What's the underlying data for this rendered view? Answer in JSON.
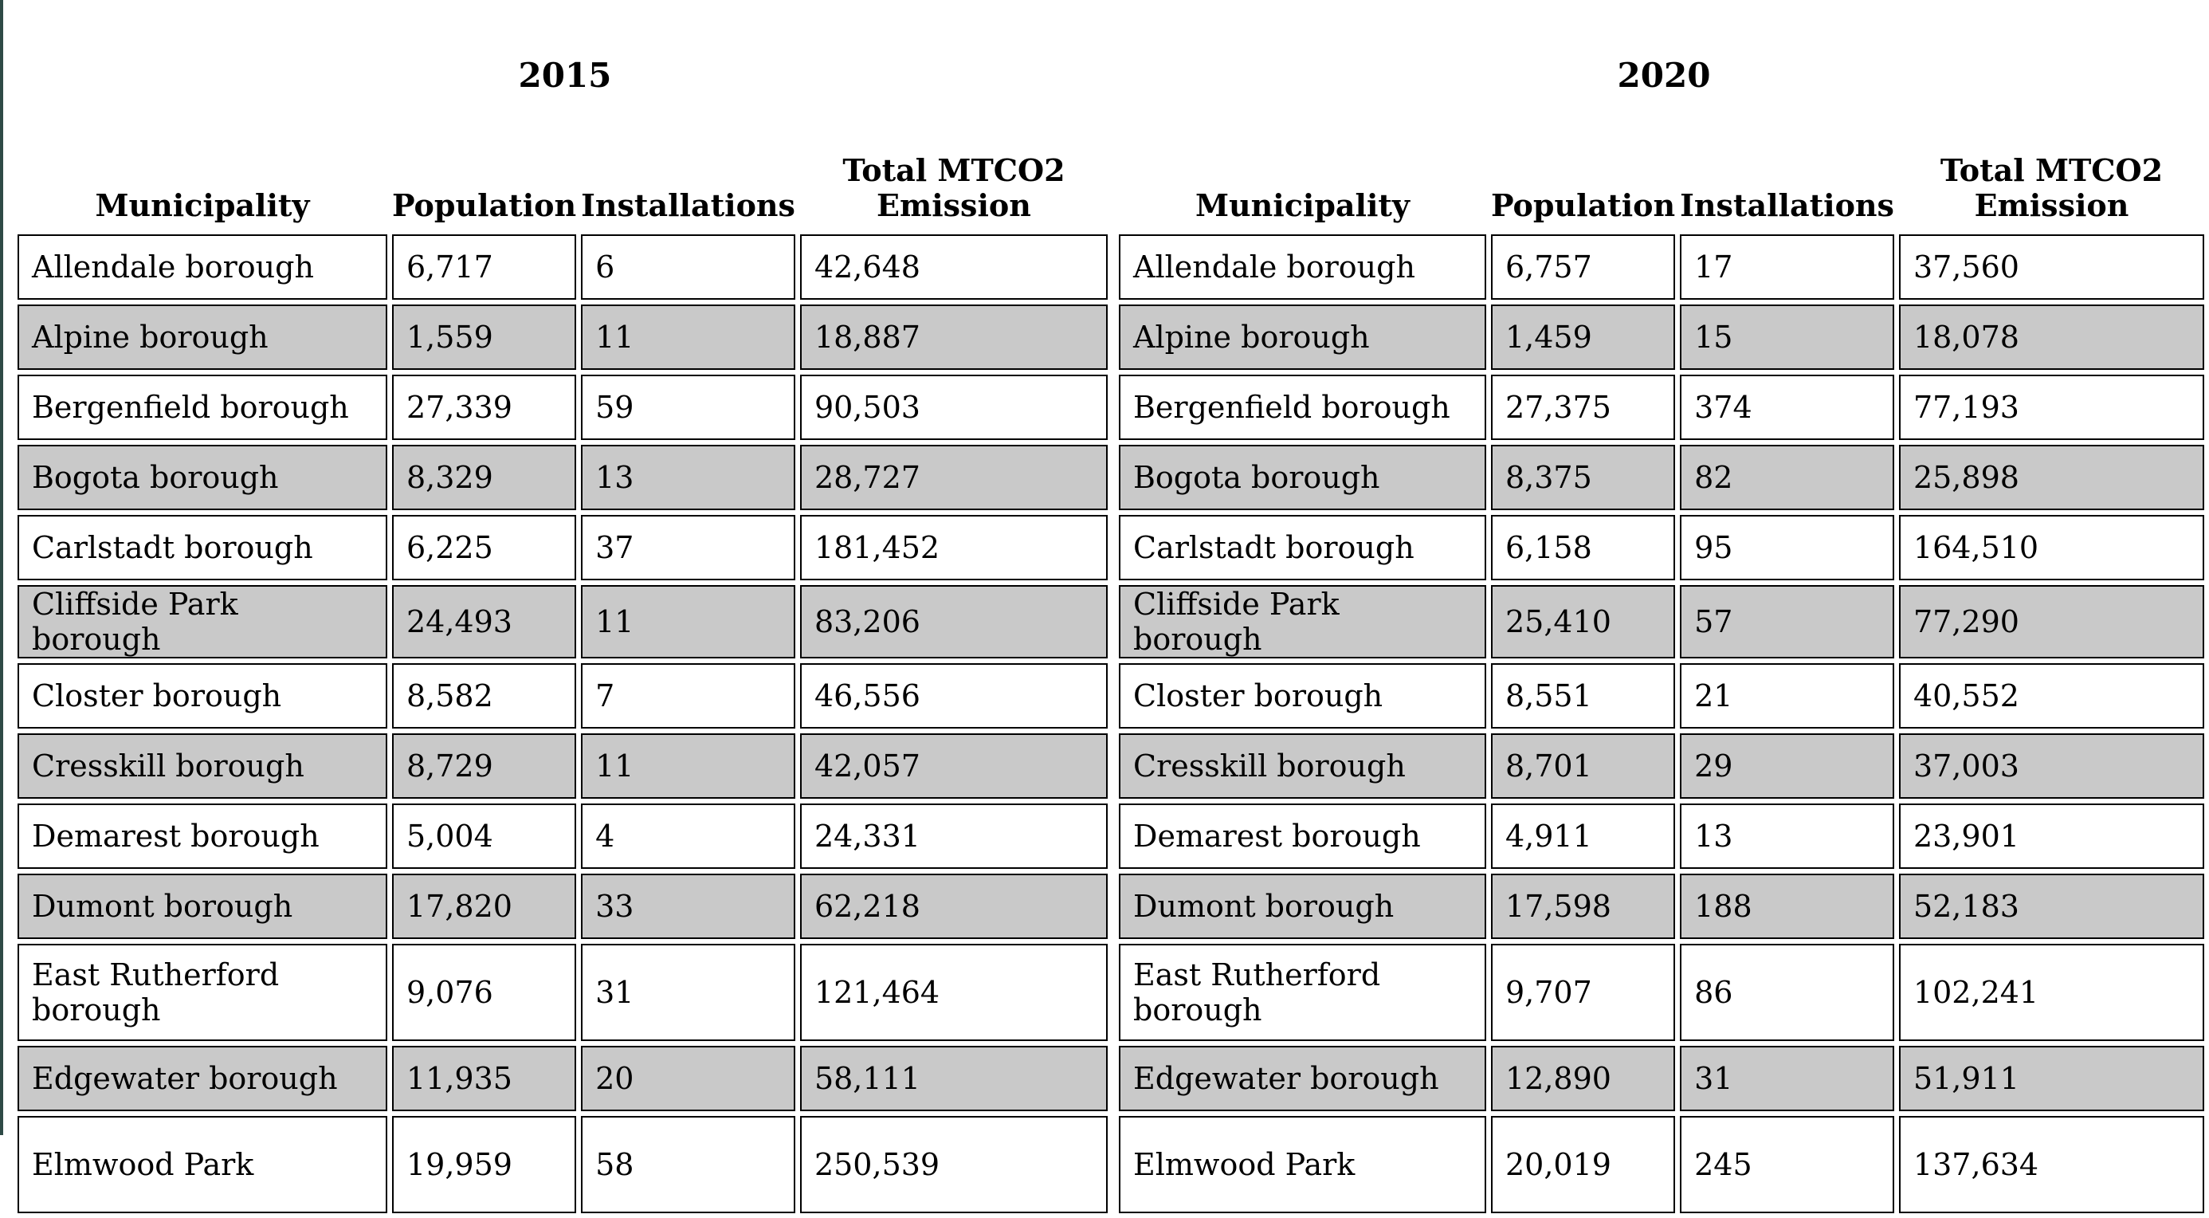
{
  "tables": [
    {
      "year": "2015",
      "headers": [
        "Municipality",
        "Population",
        "Installations",
        "Total MTCO2 Emission"
      ],
      "rows": [
        [
          "Allendale borough",
          "6,717",
          "6",
          "42,648"
        ],
        [
          "Alpine borough",
          "1,559",
          "11",
          "18,887"
        ],
        [
          "Bergenfield borough",
          "27,339",
          "59",
          "90,503"
        ],
        [
          "Bogota borough",
          "8,329",
          "13",
          "28,727"
        ],
        [
          "Carlstadt borough",
          "6,225",
          "37",
          "181,452"
        ],
        [
          "Cliffside Park borough",
          "24,493",
          "11",
          "83,206"
        ],
        [
          "Closter borough",
          "8,582",
          "7",
          "46,556"
        ],
        [
          "Cresskill borough",
          "8,729",
          "11",
          "42,057"
        ],
        [
          "Demarest borough",
          "5,004",
          "4",
          "24,331"
        ],
        [
          "Dumont borough",
          "17,820",
          "33",
          "62,218"
        ],
        [
          "East Rutherford borough",
          "9,076",
          "31",
          "121,464"
        ],
        [
          "Edgewater borough",
          "11,935",
          "20",
          "58,111"
        ],
        [
          "Elmwood Park",
          "19,959",
          "58",
          "250,539"
        ]
      ]
    },
    {
      "year": "2020",
      "headers": [
        "Municipality",
        "Population",
        "Installations",
        "Total MTCO2 Emission"
      ],
      "rows": [
        [
          "Allendale borough",
          "6,757",
          "17",
          "37,560"
        ],
        [
          "Alpine borough",
          "1,459",
          "15",
          "18,078"
        ],
        [
          "Bergenfield borough",
          "27,375",
          "374",
          "77,193"
        ],
        [
          "Bogota borough",
          "8,375",
          "82",
          "25,898"
        ],
        [
          "Carlstadt borough",
          "6,158",
          "95",
          "164,510"
        ],
        [
          "Cliffside Park borough",
          "25,410",
          "57",
          "77,290"
        ],
        [
          "Closter borough",
          "8,551",
          "21",
          "40,552"
        ],
        [
          "Cresskill borough",
          "8,701",
          "29",
          "37,003"
        ],
        [
          "Demarest borough",
          "4,911",
          "13",
          "23,901"
        ],
        [
          "Dumont borough",
          "17,598",
          "188",
          "52,183"
        ],
        [
          "East Rutherford borough",
          "9,707",
          "86",
          "102,241"
        ],
        [
          "Edgewater borough",
          "12,890",
          "31",
          "51,911"
        ],
        [
          "Elmwood Park",
          "20,019",
          "245",
          "137,634"
        ]
      ]
    }
  ]
}
